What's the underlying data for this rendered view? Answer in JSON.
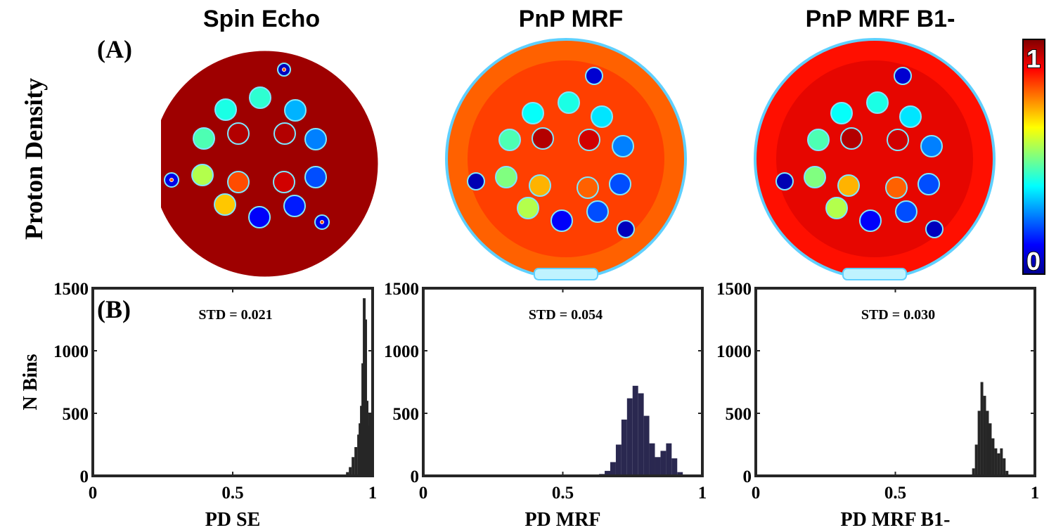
{
  "figure": {
    "panel_a_label": "(A)",
    "panel_b_label": "(B)",
    "row_label": "Proton Density",
    "colorbar": {
      "max_label": "1",
      "min_label": "0",
      "colormap": "jet"
    },
    "maps": [
      {
        "title": "Spin Echo",
        "background_level": 0.97
      },
      {
        "title": "PnP MRF",
        "background_level": 0.78
      },
      {
        "title": "PnP MRF B1-",
        "background_level": 0.86
      }
    ]
  },
  "chart_data": [
    {
      "type": "bar",
      "title": "",
      "xlabel": "PD SE",
      "ylabel": "N Bins",
      "xlim": [
        0,
        1
      ],
      "ylim": [
        0,
        1500
      ],
      "xticks": [
        "0",
        "0.5",
        "1"
      ],
      "yticks": [
        "0",
        "500",
        "1000",
        "1500"
      ],
      "annotation": "STD = 0.021",
      "color": "#262626",
      "x": [
        0.9,
        0.91,
        0.92,
        0.93,
        0.94,
        0.95,
        0.955,
        0.96,
        0.965,
        0.97,
        0.975,
        0.98,
        0.985,
        0.99,
        0.995,
        1.0
      ],
      "values": [
        10,
        30,
        70,
        150,
        230,
        330,
        420,
        560,
        900,
        1420,
        1250,
        600,
        400,
        500,
        350,
        180
      ]
    },
    {
      "type": "bar",
      "title": "",
      "xlabel": "PD MRF",
      "ylabel": "",
      "xlim": [
        0,
        1
      ],
      "ylim": [
        0,
        1500
      ],
      "xticks": [
        "0",
        "0.5",
        "1"
      ],
      "yticks": [
        "0",
        "500",
        "1000",
        "1500"
      ],
      "annotation": "STD = 0.054",
      "color": "#2a2850",
      "x": [
        0.62,
        0.64,
        0.66,
        0.68,
        0.7,
        0.72,
        0.74,
        0.76,
        0.78,
        0.8,
        0.82,
        0.84,
        0.86,
        0.88,
        0.9,
        0.92,
        0.94
      ],
      "values": [
        5,
        15,
        40,
        110,
        250,
        450,
        620,
        720,
        660,
        480,
        260,
        150,
        200,
        260,
        140,
        30,
        5
      ]
    },
    {
      "type": "bar",
      "title": "",
      "xlabel": "PD MRF B1-",
      "ylabel": "",
      "xlim": [
        0,
        1
      ],
      "ylim": [
        0,
        1500
      ],
      "xticks": [
        "0",
        "0.5",
        "1"
      ],
      "yticks": [
        "0",
        "500",
        "1000",
        "1500"
      ],
      "annotation": "STD = 0.030",
      "color": "#262626",
      "x": [
        0.77,
        0.78,
        0.79,
        0.8,
        0.81,
        0.82,
        0.83,
        0.84,
        0.85,
        0.86,
        0.87,
        0.88,
        0.89,
        0.9,
        0.91
      ],
      "values": [
        10,
        60,
        250,
        520,
        750,
        640,
        520,
        420,
        300,
        220,
        180,
        220,
        140,
        40,
        5
      ]
    }
  ]
}
